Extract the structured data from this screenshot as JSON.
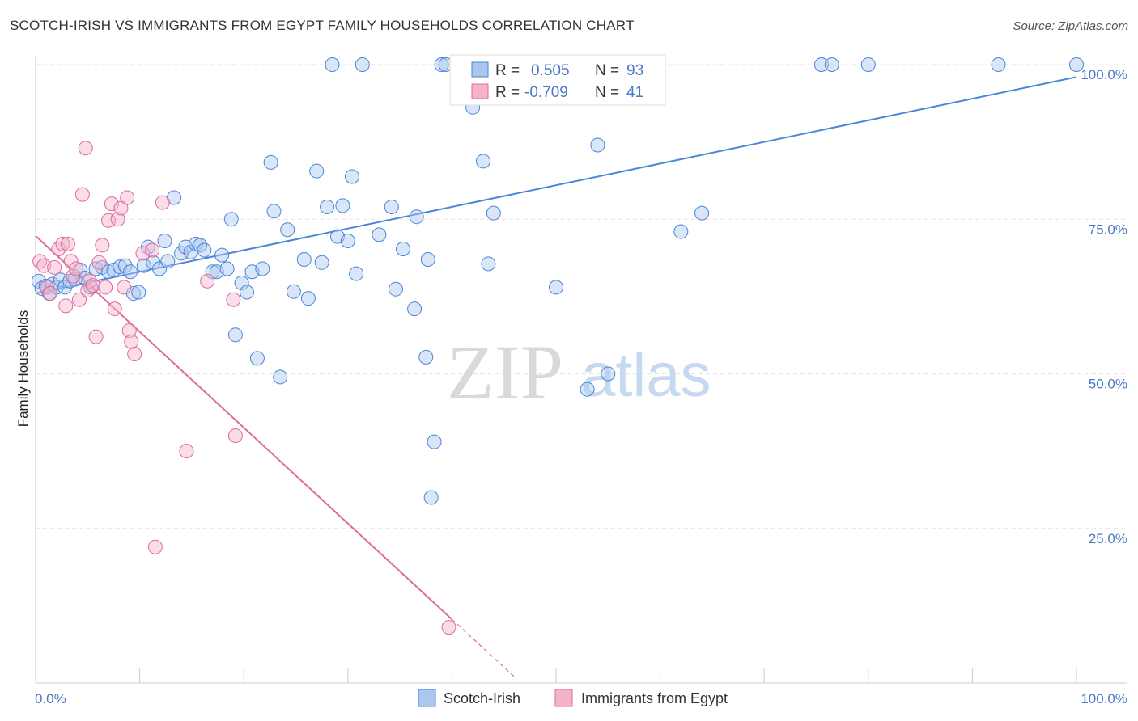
{
  "title": "SCOTCH-IRISH VS IMMIGRANTS FROM EGYPT FAMILY HOUSEHOLDS CORRELATION CHART",
  "source": "Source: ZipAtlas.com",
  "watermark": {
    "zip": "ZIP",
    "atlas": "atlas"
  },
  "colors": {
    "blue": "#4a86d8",
    "blue_fill": "#aac8ef",
    "pink": "#e06a9a",
    "pink_fill": "#f5b3cb",
    "axis_text": "#4a79c4"
  },
  "legend": {
    "rows": [
      {
        "r_label": "R =",
        "r_value": "0.505",
        "n_label": "N =",
        "n_value": "93"
      },
      {
        "r_label": "R =",
        "r_value": "-0.709",
        "n_label": "N =",
        "n_value": "41"
      }
    ]
  },
  "chart_data": {
    "type": "scatter",
    "ylabel": "Family Households",
    "xlim": [
      0,
      100
    ],
    "ylim": [
      0,
      100
    ],
    "x_tick_labels": [
      "0.0%",
      "100.0%"
    ],
    "y_ticks": [
      {
        "value": 25,
        "label": "25.0%"
      },
      {
        "value": 50,
        "label": "50.0%"
      },
      {
        "value": 75,
        "label": "75.0%"
      },
      {
        "value": 100,
        "label": "100.0%"
      }
    ],
    "grid": true,
    "legend_position": "top-center",
    "series": [
      {
        "name": "Scotch-Irish",
        "color": "#4a86d8",
        "trend": {
          "x0": 0,
          "y0": 63.0,
          "x1": 100,
          "y1": 98.0
        },
        "points": [
          [
            0.3,
            65.0
          ],
          [
            0.6,
            63.8
          ],
          [
            1.0,
            64.2
          ],
          [
            1.3,
            63.0
          ],
          [
            1.6,
            64.5
          ],
          [
            2.0,
            64.0
          ],
          [
            2.4,
            65.2
          ],
          [
            2.8,
            64.0
          ],
          [
            3.3,
            65.0
          ],
          [
            3.8,
            65.3
          ],
          [
            4.3,
            66.8
          ],
          [
            4.7,
            65.5
          ],
          [
            5.3,
            64.0
          ],
          [
            5.8,
            67.0
          ],
          [
            6.4,
            67.2
          ],
          [
            7.0,
            66.5
          ],
          [
            7.5,
            66.8
          ],
          [
            8.1,
            67.3
          ],
          [
            8.6,
            67.5
          ],
          [
            9.1,
            66.5
          ],
          [
            9.4,
            63.0
          ],
          [
            9.9,
            63.2
          ],
          [
            10.4,
            67.5
          ],
          [
            10.8,
            70.5
          ],
          [
            11.3,
            68.0
          ],
          [
            11.9,
            67.0
          ],
          [
            12.4,
            71.5
          ],
          [
            12.7,
            68.2
          ],
          [
            13.3,
            78.5
          ],
          [
            14.0,
            69.5
          ],
          [
            14.4,
            70.5
          ],
          [
            14.9,
            69.7
          ],
          [
            15.4,
            71.0
          ],
          [
            15.8,
            70.8
          ],
          [
            16.2,
            70.0
          ],
          [
            17.0,
            66.5
          ],
          [
            17.4,
            66.5
          ],
          [
            17.9,
            69.2
          ],
          [
            18.4,
            67.0
          ],
          [
            18.8,
            75.0
          ],
          [
            19.2,
            56.3
          ],
          [
            19.8,
            64.7
          ],
          [
            20.3,
            63.2
          ],
          [
            20.8,
            66.5
          ],
          [
            21.3,
            52.5
          ],
          [
            21.8,
            67.0
          ],
          [
            22.6,
            84.2
          ],
          [
            22.9,
            76.3
          ],
          [
            23.5,
            49.5
          ],
          [
            24.2,
            73.3
          ],
          [
            24.8,
            63.3
          ],
          [
            25.8,
            68.5
          ],
          [
            26.2,
            62.2
          ],
          [
            27.0,
            82.8
          ],
          [
            27.5,
            68.0
          ],
          [
            28.0,
            77.0
          ],
          [
            28.5,
            100.0
          ],
          [
            29.0,
            72.2
          ],
          [
            29.5,
            77.2
          ],
          [
            30.0,
            71.5
          ],
          [
            30.4,
            81.9
          ],
          [
            30.8,
            66.2
          ],
          [
            31.4,
            100.0
          ],
          [
            33.0,
            72.5
          ],
          [
            34.2,
            77.0
          ],
          [
            34.6,
            63.7
          ],
          [
            35.3,
            70.2
          ],
          [
            36.4,
            60.5
          ],
          [
            36.6,
            75.4
          ],
          [
            37.5,
            52.7
          ],
          [
            37.7,
            68.5
          ],
          [
            38.0,
            30.0
          ],
          [
            38.3,
            39.0
          ],
          [
            39.0,
            100.0
          ],
          [
            39.4,
            100.0
          ],
          [
            41.0,
            100.0
          ],
          [
            42.0,
            93.1
          ],
          [
            43.0,
            84.4
          ],
          [
            43.5,
            67.8
          ],
          [
            44.0,
            76.0
          ],
          [
            46.0,
            100.0
          ],
          [
            50.0,
            64.0
          ],
          [
            53.0,
            47.5
          ],
          [
            54.0,
            87.0
          ],
          [
            55.0,
            50.0
          ],
          [
            57.0,
            100.0
          ],
          [
            62.0,
            73.0
          ],
          [
            64.0,
            76.0
          ],
          [
            75.5,
            100.0
          ],
          [
            76.5,
            100.0
          ],
          [
            80.0,
            100.0
          ],
          [
            92.5,
            100.0
          ],
          [
            100.0,
            100.0
          ]
        ]
      },
      {
        "name": "Immigrants from Egypt",
        "color": "#e06a9a",
        "trend": {
          "x0": 0,
          "y0": 72.3,
          "x1": 40,
          "y1": 10.3,
          "dash_to_x": 46
        },
        "points": [
          [
            0.4,
            68.2
          ],
          [
            0.8,
            67.5
          ],
          [
            1.1,
            64.0
          ],
          [
            1.4,
            63.0
          ],
          [
            1.8,
            67.2
          ],
          [
            2.2,
            70.2
          ],
          [
            2.6,
            71.0
          ],
          [
            2.9,
            61.0
          ],
          [
            3.1,
            71.0
          ],
          [
            3.4,
            68.2
          ],
          [
            3.6,
            65.8
          ],
          [
            3.9,
            67.0
          ],
          [
            4.2,
            62.0
          ],
          [
            4.5,
            79.0
          ],
          [
            4.8,
            86.5
          ],
          [
            5.0,
            63.5
          ],
          [
            5.2,
            65.0
          ],
          [
            5.5,
            64.3
          ],
          [
            5.8,
            56.0
          ],
          [
            6.1,
            68.0
          ],
          [
            6.4,
            70.8
          ],
          [
            6.7,
            64.0
          ],
          [
            7.0,
            74.8
          ],
          [
            7.3,
            77.5
          ],
          [
            7.6,
            60.5
          ],
          [
            7.9,
            75.0
          ],
          [
            8.2,
            76.8
          ],
          [
            8.5,
            64.0
          ],
          [
            8.8,
            78.5
          ],
          [
            9.0,
            57.0
          ],
          [
            9.2,
            55.2
          ],
          [
            9.5,
            53.2
          ],
          [
            10.3,
            69.5
          ],
          [
            11.2,
            70.0
          ],
          [
            11.5,
            22.0
          ],
          [
            12.2,
            77.7
          ],
          [
            14.5,
            37.5
          ],
          [
            16.5,
            65.0
          ],
          [
            19.0,
            62.0
          ],
          [
            19.2,
            40.0
          ],
          [
            39.7,
            9.0
          ]
        ]
      }
    ]
  }
}
